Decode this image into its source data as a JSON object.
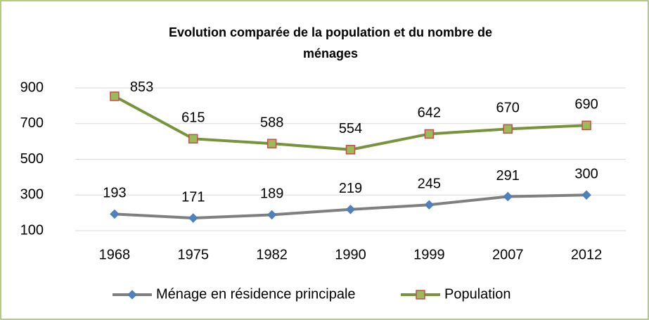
{
  "chart_data": {
    "type": "line",
    "title": "Evolution comparée de la population et du nombre de ménages",
    "categories": [
      "1968",
      "1975",
      "1982",
      "1990",
      "1999",
      "2007",
      "2012"
    ],
    "series": [
      {
        "name": "Ménage en résidence principale",
        "color": "#7f7f7f",
        "marker_color": "#4f81bd",
        "values": [
          193,
          171,
          189,
          219,
          245,
          291,
          300
        ]
      },
      {
        "name": "Population",
        "color": "#77933c",
        "marker_color": "#9bbb59",
        "values": [
          853,
          615,
          588,
          554,
          642,
          670,
          690
        ]
      }
    ],
    "ylim": [
      100,
      900
    ],
    "yticks": [
      100,
      300,
      500,
      700,
      900
    ],
    "grid": true
  }
}
